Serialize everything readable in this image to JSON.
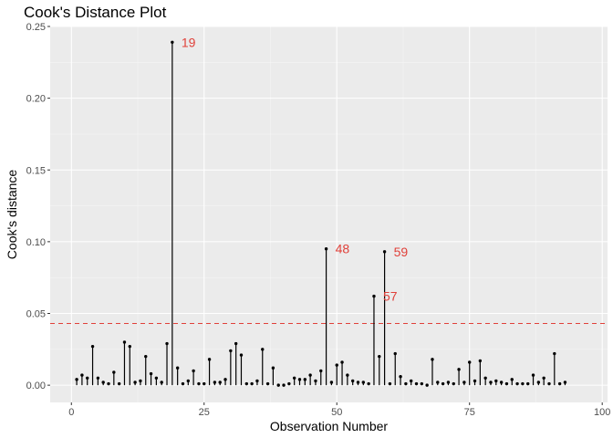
{
  "chart_data": {
    "type": "stem",
    "title": "Cook's Distance Plot",
    "xlabel": "Observation Number",
    "ylabel": "Cook's distance",
    "xlim": [
      -4,
      101
    ],
    "ylim": [
      -0.012,
      0.25
    ],
    "x_ticks": [
      0,
      25,
      50,
      75,
      100
    ],
    "x_tick_labels": [
      "0",
      "25",
      "50",
      "75",
      "100"
    ],
    "y_ticks": [
      0.0,
      0.05,
      0.1,
      0.15,
      0.2,
      0.25
    ],
    "y_tick_labels": [
      "0.00",
      "0.05",
      "0.10",
      "0.15",
      "0.20",
      "0.25"
    ],
    "threshold": 0.043,
    "threshold_color": "#e0413a",
    "annotation_color": "#e0413a",
    "background_color": "#ebebeb",
    "grid": true,
    "x": [
      1,
      2,
      3,
      4,
      5,
      6,
      7,
      8,
      9,
      10,
      11,
      12,
      13,
      14,
      15,
      16,
      17,
      18,
      19,
      20,
      21,
      22,
      23,
      24,
      25,
      26,
      27,
      28,
      29,
      30,
      31,
      32,
      33,
      34,
      35,
      36,
      37,
      38,
      39,
      40,
      41,
      42,
      43,
      44,
      45,
      46,
      47,
      48,
      49,
      50,
      51,
      52,
      53,
      54,
      55,
      56,
      57,
      58,
      59,
      60,
      61,
      62,
      63,
      64,
      65,
      66,
      67,
      68,
      69,
      70,
      71,
      72,
      73,
      74,
      75,
      76,
      77,
      78,
      79,
      80,
      81,
      82,
      83,
      84,
      85,
      86,
      87,
      88,
      89,
      90,
      91,
      92,
      93
    ],
    "values": [
      0.004,
      0.007,
      0.005,
      0.027,
      0.005,
      0.002,
      0.001,
      0.009,
      0.001,
      0.03,
      0.027,
      0.002,
      0.003,
      0.02,
      0.008,
      0.005,
      0.002,
      0.029,
      0.239,
      0.012,
      0.001,
      0.003,
      0.01,
      0.001,
      0.001,
      0.018,
      0.002,
      0.002,
      0.004,
      0.024,
      0.029,
      0.021,
      0.001,
      0.001,
      0.003,
      0.025,
      0.001,
      0.012,
      0.0,
      0.0,
      0.001,
      0.005,
      0.004,
      0.004,
      0.007,
      0.003,
      0.01,
      0.095,
      0.002,
      0.014,
      0.016,
      0.007,
      0.003,
      0.002,
      0.002,
      0.001,
      0.062,
      0.02,
      0.093,
      0.001,
      0.022,
      0.006,
      0.001,
      0.003,
      0.001,
      0.001,
      0.0,
      0.018,
      0.002,
      0.001,
      0.002,
      0.001,
      0.011,
      0.002,
      0.016,
      0.003,
      0.017,
      0.005,
      0.002,
      0.003,
      0.002,
      0.001,
      0.004,
      0.001,
      0.001,
      0.001,
      0.007,
      0.002,
      0.005,
      0.001,
      0.022,
      0.001,
      0.002
    ],
    "annotations": [
      {
        "x": 19,
        "y": 0.239,
        "label": "19"
      },
      {
        "x": 48,
        "y": 0.095,
        "label": "48"
      },
      {
        "x": 59,
        "y": 0.093,
        "label": "59"
      },
      {
        "x": 57,
        "y": 0.062,
        "label": "57"
      }
    ]
  }
}
